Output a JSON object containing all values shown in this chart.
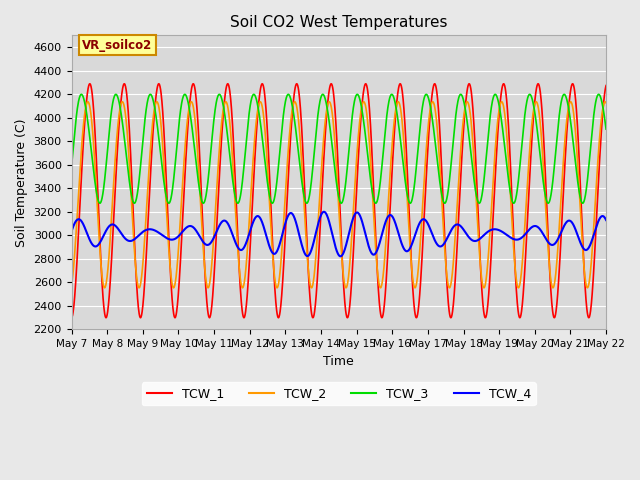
{
  "title": "Soil CO2 West Temperatures",
  "xlabel": "Time",
  "ylabel": "Soil Temperature (C)",
  "ylim": [
    2200,
    4700
  ],
  "xlim_days": 15.5,
  "annotation": "VR_soilco2",
  "x_tick_labels": [
    "May 7",
    "May 8",
    "May 9",
    "May 10",
    "May 11",
    "May 12",
    "May 13",
    "May 14",
    "May 15",
    "May 16",
    "May 17",
    "May 18",
    "May 19",
    "May 20",
    "May 21",
    "May 22"
  ],
  "colors": {
    "TCW_1": "#ff0000",
    "TCW_2": "#ff9900",
    "TCW_3": "#00dd00",
    "TCW_4": "#0000ff"
  },
  "bg_color": "#e8e8e8",
  "plot_bg": "#d9d9d9",
  "grid_color": "#ffffff",
  "annotation_bg": "#ffff99",
  "annotation_border": "#cc8800",
  "yticks": [
    2200,
    2400,
    2600,
    2800,
    3000,
    3200,
    3400,
    3600,
    3800,
    4000,
    4200,
    4400,
    4600
  ],
  "tcw1_mean": 3330,
  "tcw1_amp": 990,
  "tcw1_phase": -1.65,
  "tcw2_mean": 3380,
  "tcw2_amp": 790,
  "tcw2_phase": -1.35,
  "tcw3_mean": 3750,
  "tcw3_amp": 460,
  "tcw3_phase": -0.35,
  "tcw4_mean": 3010,
  "tcw4_amp1": 115,
  "tcw4_phase1": -0.4,
  "tcw4_amp2": 75,
  "tcw4_phase2": 1.2,
  "tcw4_freq2": 0.55
}
